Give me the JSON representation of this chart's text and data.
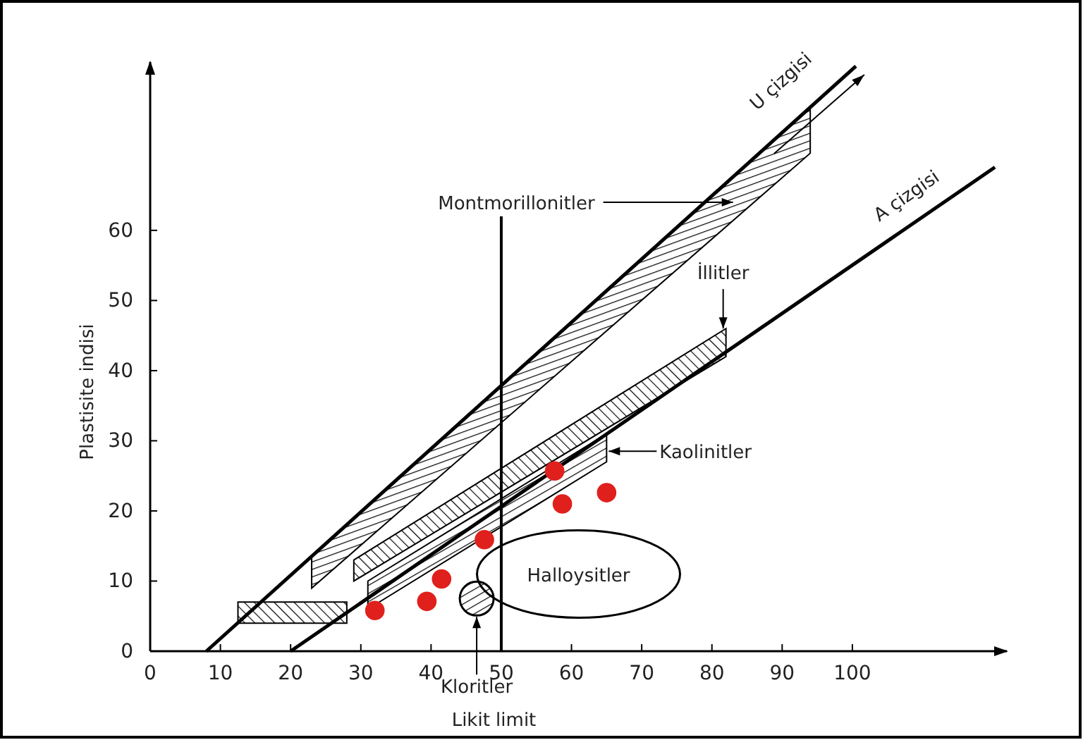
{
  "chart_data": {
    "type": "scatter",
    "xlabel": "Likit limit",
    "ylabel": "Plastisite indisi",
    "xlim": [
      0,
      122
    ],
    "ylim": [
      0,
      84
    ],
    "xticks": [
      0,
      10,
      20,
      30,
      40,
      50,
      60,
      70,
      80,
      90,
      100
    ],
    "yticks": [
      0,
      10,
      20,
      30,
      40,
      50,
      60
    ],
    "grid": false,
    "series": [
      {
        "type": "area",
        "color": "#000000",
        "x": [
          23,
          94,
          94,
          23
        ],
        "values": [
          13.5,
          77.4,
          71,
          9
        ]
      },
      {
        "type": "area",
        "color": "#000000",
        "x": [
          29,
          82,
          82,
          29
        ],
        "values": [
          13,
          46,
          42,
          10
        ]
      },
      {
        "type": "area",
        "color": "#000000",
        "x": [
          31,
          65,
          65,
          31
        ],
        "values": [
          10,
          31,
          27,
          6
        ]
      },
      {
        "type": "area",
        "color": "#000000",
        "x": [
          12.5,
          28,
          28,
          12.5
        ],
        "values": [
          7,
          7,
          4,
          4
        ]
      },
      {
        "type": "line",
        "color": "#000000",
        "x": [
          8,
          100.5
        ],
        "values": [
          0,
          83.4
        ]
      },
      {
        "type": "line",
        "color": "#000000",
        "x": [
          20,
          120.3
        ],
        "values": [
          0,
          69
        ]
      },
      {
        "type": "bubble",
        "color": "#000000",
        "x": [
          46.5
        ],
        "values": [
          7.5
        ],
        "sizes": [
          1
        ]
      },
      {
        "marker": "circle",
        "color": "#e0201c",
        "x": [
          32,
          39.4,
          41.5,
          47.6,
          57.6,
          58.7,
          65
        ],
        "values": [
          5.8,
          7.1,
          10.3,
          15.9,
          25.7,
          21,
          22.6
        ]
      }
    ],
    "ref_lines": [
      {
        "axis": "x",
        "value": 50
      }
    ],
    "annotations": [
      {
        "text": "U çizgisi",
        "x": 94,
        "y": 79
      },
      {
        "text": "A çizgisi",
        "x": 111,
        "y": 62.6
      },
      "Montmorillonitler",
      {
        "text": "İllitler",
        "x": 81.6,
        "y": 46
      },
      {
        "text": "Kaolinitler",
        "x": 65.3,
        "y": 28.5
      },
      "Halloysitler",
      {
        "text": "Kloritler",
        "x": 46.5,
        "y": 4.9
      }
    ]
  }
}
